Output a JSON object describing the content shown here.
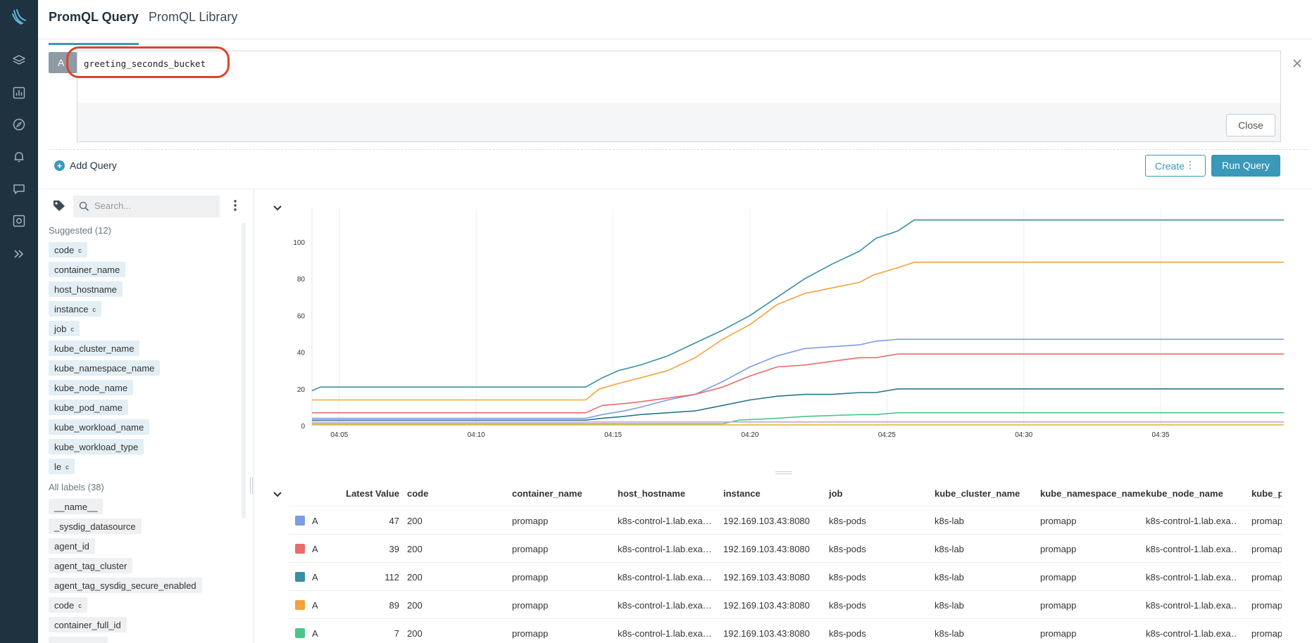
{
  "rail": {
    "icons": [
      "sysdig-logo-icon",
      "layers-icon",
      "dashboard-icon",
      "compass-icon",
      "alert-bell-icon",
      "event-chat-icon",
      "capture-camera-icon",
      "expand-chevrons-icon"
    ]
  },
  "tabs": {
    "query": "PromQL Query",
    "library": "PromQL Library"
  },
  "query": {
    "letter": "A",
    "text": "greeting_seconds_bucket",
    "close_label": "Close"
  },
  "actions": {
    "add_query": "Add Query",
    "create": "Create",
    "create_dots": "⋮",
    "run": "Run Query"
  },
  "labels": {
    "search_placeholder": "Search...",
    "suggested_title": "Suggested (12)",
    "all_title": "All labels (38)",
    "suggested": [
      {
        "name": "code",
        "c": "c"
      },
      {
        "name": "container_name",
        "c": ""
      },
      {
        "name": "host_hostname",
        "c": ""
      },
      {
        "name": "instance",
        "c": "c"
      },
      {
        "name": "job",
        "c": "c"
      },
      {
        "name": "kube_cluster_name",
        "c": ""
      },
      {
        "name": "kube_namespace_name",
        "c": ""
      },
      {
        "name": "kube_node_name",
        "c": ""
      },
      {
        "name": "kube_pod_name",
        "c": ""
      },
      {
        "name": "kube_workload_name",
        "c": ""
      },
      {
        "name": "kube_workload_type",
        "c": ""
      },
      {
        "name": "le",
        "c": "c"
      }
    ],
    "all": [
      {
        "name": "__name__",
        "c": ""
      },
      {
        "name": "_sysdig_datasource",
        "c": ""
      },
      {
        "name": "agent_id",
        "c": ""
      },
      {
        "name": "agent_tag_cluster",
        "c": ""
      },
      {
        "name": "agent_tag_sysdig_secure_enabled",
        "c": ""
      },
      {
        "name": "code",
        "c": "c"
      },
      {
        "name": "container_full_id",
        "c": ""
      }
    ]
  },
  "chart_data": {
    "type": "line",
    "title": "",
    "xlabel": "",
    "ylabel": "",
    "x_ticks": [
      "04:05",
      "04:10",
      "04:15",
      "04:20",
      "04:25",
      "04:30",
      "04:35"
    ],
    "y_ticks": [
      0,
      20,
      40,
      60,
      80,
      100
    ],
    "ylim": [
      0,
      118
    ],
    "xlim": [
      4.0,
      39.5
    ],
    "grid": true,
    "series": [
      {
        "color": "#3a8fa5",
        "points": [
          [
            4.0,
            19
          ],
          [
            4.3,
            21
          ],
          [
            14.0,
            21
          ],
          [
            14.6,
            26
          ],
          [
            15.2,
            30
          ],
          [
            16.0,
            33
          ],
          [
            17.0,
            38
          ],
          [
            18.0,
            45
          ],
          [
            19.0,
            52
          ],
          [
            20.0,
            60
          ],
          [
            21.0,
            70
          ],
          [
            22.0,
            80
          ],
          [
            23.0,
            88
          ],
          [
            24.0,
            95
          ],
          [
            24.6,
            102
          ],
          [
            25.4,
            106
          ],
          [
            26.0,
            112
          ],
          [
            39.5,
            112
          ]
        ]
      },
      {
        "color": "#f2a33a",
        "points": [
          [
            4.0,
            14
          ],
          [
            14.0,
            14
          ],
          [
            14.5,
            20
          ],
          [
            15.2,
            23
          ],
          [
            16.0,
            26
          ],
          [
            17.0,
            30
          ],
          [
            18.0,
            37
          ],
          [
            19.0,
            47
          ],
          [
            20.0,
            55
          ],
          [
            21.0,
            66
          ],
          [
            22.0,
            72
          ],
          [
            23.0,
            75
          ],
          [
            24.0,
            78
          ],
          [
            24.5,
            82
          ],
          [
            25.4,
            86
          ],
          [
            26.0,
            89
          ],
          [
            39.5,
            89
          ]
        ]
      },
      {
        "color": "#7d9be6",
        "points": [
          [
            4.0,
            4
          ],
          [
            14.0,
            4
          ],
          [
            14.6,
            6
          ],
          [
            15.4,
            8
          ],
          [
            16.0,
            10
          ],
          [
            17.0,
            14
          ],
          [
            18.0,
            17
          ],
          [
            19.0,
            24
          ],
          [
            20.0,
            32
          ],
          [
            21.0,
            38
          ],
          [
            22.0,
            42
          ],
          [
            23.0,
            43
          ],
          [
            24.0,
            44
          ],
          [
            24.6,
            46
          ],
          [
            25.4,
            47
          ],
          [
            39.5,
            47
          ]
        ]
      },
      {
        "color": "#ea6b6b",
        "points": [
          [
            4.0,
            7
          ],
          [
            14.0,
            7
          ],
          [
            14.6,
            11
          ],
          [
            15.4,
            12
          ],
          [
            16.0,
            13
          ],
          [
            17.0,
            15
          ],
          [
            18.0,
            17
          ],
          [
            19.0,
            21
          ],
          [
            20.0,
            27
          ],
          [
            21.0,
            32
          ],
          [
            22.0,
            33
          ],
          [
            23.0,
            35
          ],
          [
            24.0,
            37
          ],
          [
            24.6,
            37
          ],
          [
            25.4,
            39
          ],
          [
            39.5,
            39
          ]
        ]
      },
      {
        "color": "#2a7489",
        "points": [
          [
            4.0,
            3
          ],
          [
            14.0,
            3
          ],
          [
            14.6,
            4
          ],
          [
            15.4,
            5
          ],
          [
            16.0,
            6
          ],
          [
            17.0,
            7
          ],
          [
            18.0,
            8
          ],
          [
            19.0,
            11
          ],
          [
            20.0,
            14
          ],
          [
            21.0,
            16
          ],
          [
            22.0,
            17
          ],
          [
            23.0,
            17
          ],
          [
            24.0,
            18
          ],
          [
            24.6,
            18
          ],
          [
            25.4,
            20
          ],
          [
            39.5,
            20
          ]
        ]
      },
      {
        "color": "#4cc48a",
        "points": [
          [
            4.0,
            1
          ],
          [
            19.0,
            1
          ],
          [
            19.6,
            3
          ],
          [
            21.0,
            4
          ],
          [
            22.0,
            5
          ],
          [
            24.0,
            6
          ],
          [
            24.6,
            6
          ],
          [
            25.4,
            7
          ],
          [
            39.5,
            7
          ]
        ]
      },
      {
        "color": "#c9a0dc",
        "points": [
          [
            4.0,
            2
          ],
          [
            39.5,
            2
          ]
        ]
      },
      {
        "color": "#e8c547",
        "points": [
          [
            4.0,
            0.5
          ],
          [
            39.5,
            0.5
          ]
        ]
      }
    ]
  },
  "table": {
    "headers": [
      "Latest Value",
      "code",
      "container_name",
      "host_hostname",
      "instance",
      "job",
      "kube_cluster_name",
      "kube_namespace_name",
      "kube_node_name",
      "kube_p"
    ],
    "rows": [
      {
        "color": "#7d9be6",
        "query": "A",
        "value": "47",
        "code": "200",
        "container_name": "promapp",
        "host_hostname": "k8s-control-1.lab.exa…",
        "instance": "192.169.103.43:8080",
        "job": "k8s-pods",
        "cluster": "k8s-lab",
        "namespace": "promapp",
        "node": "k8s-control-1.lab.exa…",
        "pod": "promap"
      },
      {
        "color": "#ea6b6b",
        "query": "A",
        "value": "39",
        "code": "200",
        "container_name": "promapp",
        "host_hostname": "k8s-control-1.lab.exa…",
        "instance": "192.169.103.43:8080",
        "job": "k8s-pods",
        "cluster": "k8s-lab",
        "namespace": "promapp",
        "node": "k8s-control-1.lab.exa…",
        "pod": "promap"
      },
      {
        "color": "#3a8fa5",
        "query": "A",
        "value": "112",
        "code": "200",
        "container_name": "promapp",
        "host_hostname": "k8s-control-1.lab.exa…",
        "instance": "192.169.103.43:8080",
        "job": "k8s-pods",
        "cluster": "k8s-lab",
        "namespace": "promapp",
        "node": "k8s-control-1.lab.exa…",
        "pod": "promap"
      },
      {
        "color": "#f2a33a",
        "query": "A",
        "value": "89",
        "code": "200",
        "container_name": "promapp",
        "host_hostname": "k8s-control-1.lab.exa…",
        "instance": "192.169.103.43:8080",
        "job": "k8s-pods",
        "cluster": "k8s-lab",
        "namespace": "promapp",
        "node": "k8s-control-1.lab.exa…",
        "pod": "promap"
      },
      {
        "color": "#4cc48a",
        "query": "A",
        "value": "7",
        "code": "200",
        "container_name": "promapp",
        "host_hostname": "k8s-control-1.lab.exa…",
        "instance": "192.169.103.43:8080",
        "job": "k8s-pods",
        "cluster": "k8s-lab",
        "namespace": "promapp",
        "node": "k8s-control-1.lab.exa…",
        "pod": "promap"
      }
    ]
  },
  "colors": {
    "accent": "#3a98b8",
    "rail": "#1f3240",
    "highlight": "#d9452b"
  }
}
